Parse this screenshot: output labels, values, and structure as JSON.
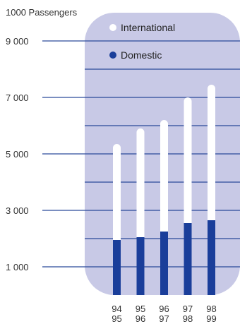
{
  "chart_data": {
    "type": "bar",
    "stacked": true,
    "ylabel": "1000 Passengers",
    "y_ticks": [
      {
        "value": 9000,
        "label": "9 000"
      },
      {
        "value": 7000,
        "label": "7 000"
      },
      {
        "value": 5000,
        "label": "5 000"
      },
      {
        "value": 3000,
        "label": "3 000"
      },
      {
        "value": 1000,
        "label": "1 000"
      }
    ],
    "ylim": [
      0,
      10000
    ],
    "gridlines_every": 1000,
    "categories": [
      {
        "line1": "94",
        "line2": "95"
      },
      {
        "line1": "95",
        "line2": "96"
      },
      {
        "line1": "96",
        "line2": "97"
      },
      {
        "line1": "97",
        "line2": "98"
      },
      {
        "line1": "98",
        "line2": "99"
      }
    ],
    "series": [
      {
        "name": "Domestic",
        "color": "#1a3e9a",
        "values": [
          1950,
          2050,
          2250,
          2550,
          2650
        ]
      },
      {
        "name": "International",
        "color": "#ffffff",
        "values": [
          3400,
          3850,
          3950,
          4450,
          4800
        ]
      }
    ],
    "legend": {
      "placement": "top",
      "items": [
        {
          "label": "International",
          "color": "#ffffff"
        },
        {
          "label": "Domestic",
          "color": "#1a3e9a"
        }
      ]
    },
    "panel_color": "#c8c9e6",
    "grid_color": "#2a4a9a"
  }
}
